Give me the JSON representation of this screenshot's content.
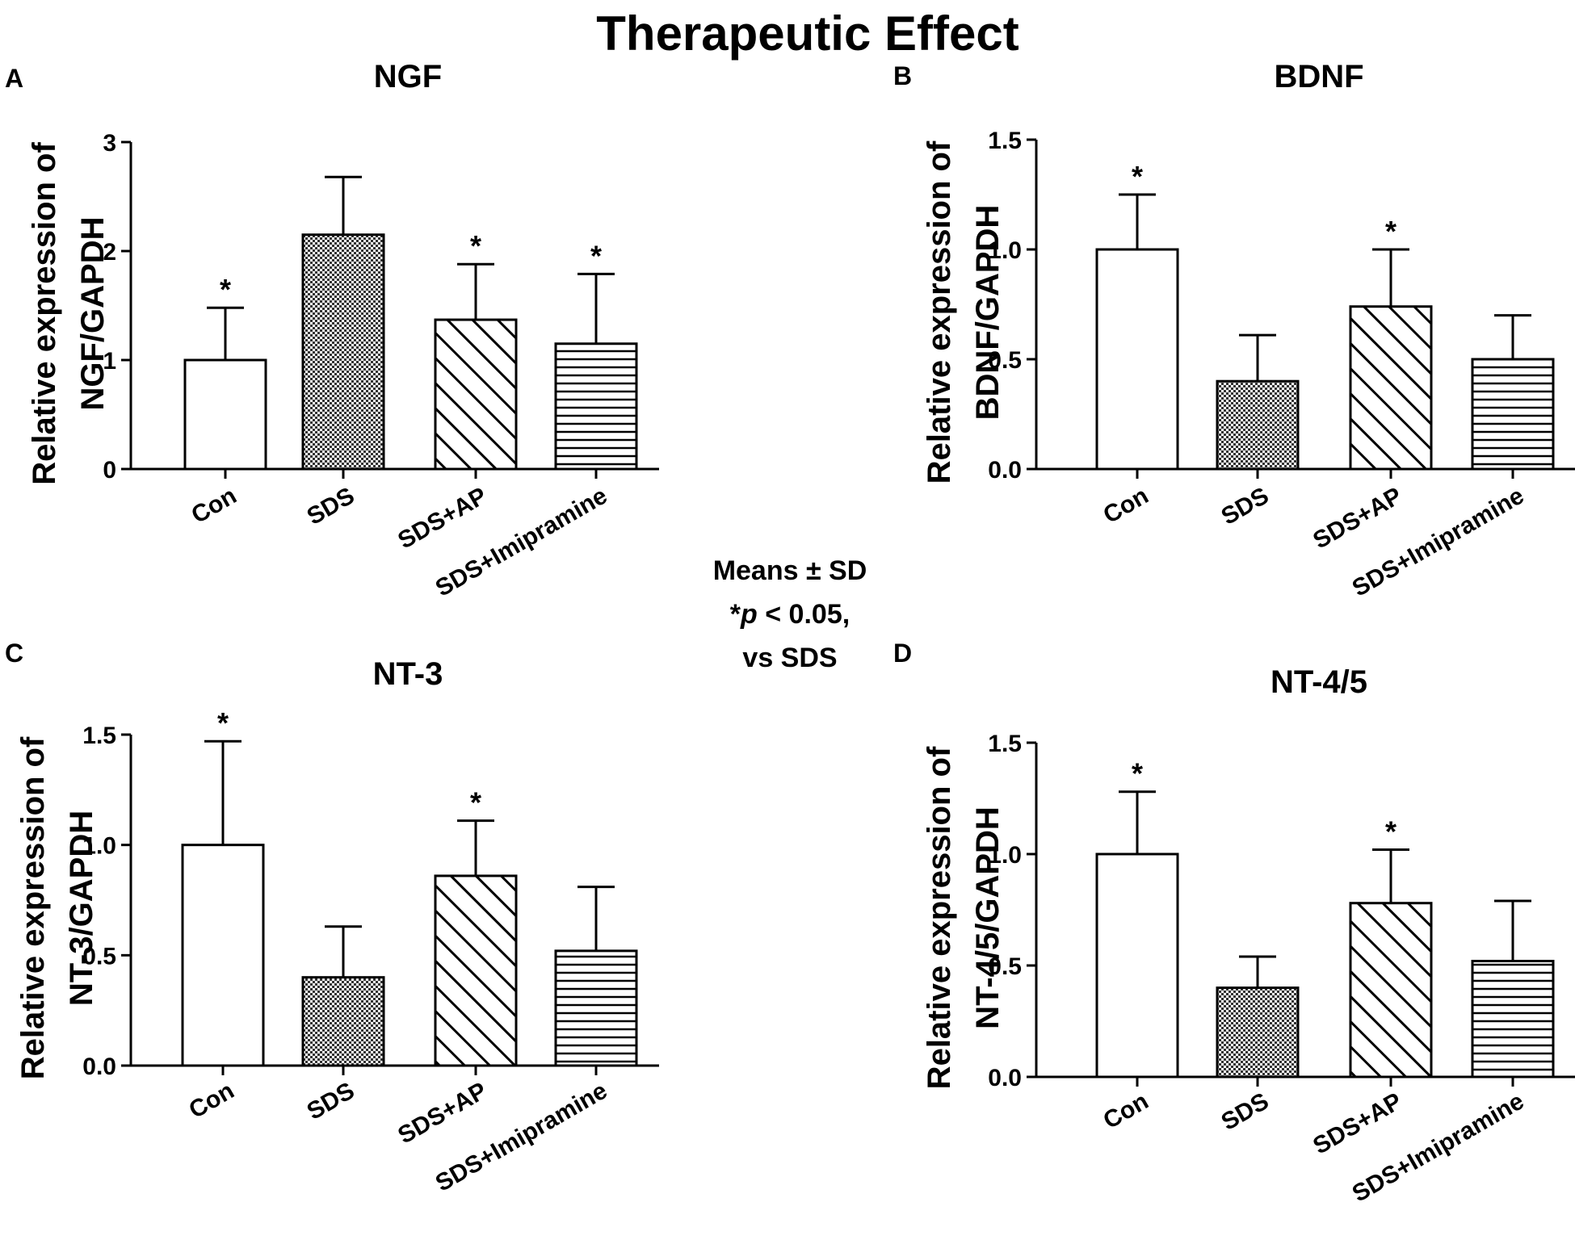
{
  "title": "Therapeutic Effect",
  "legend": {
    "line1": "Means ± SD",
    "star": "*",
    "p": "p",
    "threshold": " < 0.05,",
    "line3": "vs SDS"
  },
  "chart_data": [
    {
      "type": "bar",
      "panel": "A",
      "title": "NGF",
      "ylabel_line1": "Relative expression of",
      "ylabel_line2": "NGF/GAPDH",
      "categories": [
        "Con",
        "SDS",
        "SDS+AP",
        "SDS+Imipramine"
      ],
      "values": [
        1.0,
        2.15,
        1.37,
        1.15
      ],
      "errors": [
        0.48,
        0.53,
        0.51,
        0.64
      ],
      "significant": [
        true,
        false,
        true,
        true
      ],
      "patterns": [
        "none",
        "dots",
        "diag",
        "horiz"
      ],
      "ylim": [
        0,
        3
      ],
      "yticks": [
        0,
        1,
        2,
        3
      ],
      "ytick_labels": [
        "0",
        "1",
        "2",
        "3"
      ]
    },
    {
      "type": "bar",
      "panel": "B",
      "title": "BDNF",
      "ylabel_line1": "Relative expression of",
      "ylabel_line2": "BDNF/GAPDH",
      "categories": [
        "Con",
        "SDS",
        "SDS+AP",
        "SDS+Imipramine"
      ],
      "values": [
        1.0,
        0.4,
        0.74,
        0.5
      ],
      "errors": [
        0.25,
        0.21,
        0.26,
        0.2
      ],
      "significant": [
        true,
        false,
        true,
        false
      ],
      "patterns": [
        "none",
        "dots",
        "diag",
        "horiz"
      ],
      "ylim": [
        0,
        1.5
      ],
      "yticks": [
        0,
        0.5,
        1.0,
        1.5
      ],
      "ytick_labels": [
        "0.0",
        "0.5",
        "1.0",
        "1.5"
      ]
    },
    {
      "type": "bar",
      "panel": "C",
      "title": "NT-3",
      "ylabel_line1": "Relative expression of",
      "ylabel_line2": "NT-3/GAPDH",
      "categories": [
        "Con",
        "SDS",
        "SDS+AP",
        "SDS+Imipramine"
      ],
      "values": [
        1.0,
        0.4,
        0.86,
        0.52
      ],
      "errors": [
        0.47,
        0.23,
        0.25,
        0.29
      ],
      "significant": [
        true,
        false,
        true,
        false
      ],
      "patterns": [
        "none",
        "dots",
        "diag",
        "horiz"
      ],
      "ylim": [
        0,
        1.5
      ],
      "yticks": [
        0,
        0.5,
        1.0,
        1.5
      ],
      "ytick_labels": [
        "0.0",
        "0.5",
        "1.0",
        "1.5"
      ]
    },
    {
      "type": "bar",
      "panel": "D",
      "title": "NT-4/5",
      "ylabel_line1": "Relative expression of",
      "ylabel_line2": "NT-4/5/GAPDH",
      "categories": [
        "Con",
        "SDS",
        "SDS+AP",
        "SDS+Imipramine"
      ],
      "values": [
        1.0,
        0.4,
        0.78,
        0.52
      ],
      "errors": [
        0.28,
        0.14,
        0.24,
        0.27
      ],
      "significant": [
        true,
        false,
        true,
        false
      ],
      "patterns": [
        "none",
        "dots",
        "diag",
        "horiz"
      ],
      "ylim": [
        0,
        1.5
      ],
      "yticks": [
        0,
        0.5,
        1.0,
        1.5
      ],
      "ytick_labels": [
        "0.0",
        "0.5",
        "1.0",
        "1.5"
      ]
    }
  ]
}
